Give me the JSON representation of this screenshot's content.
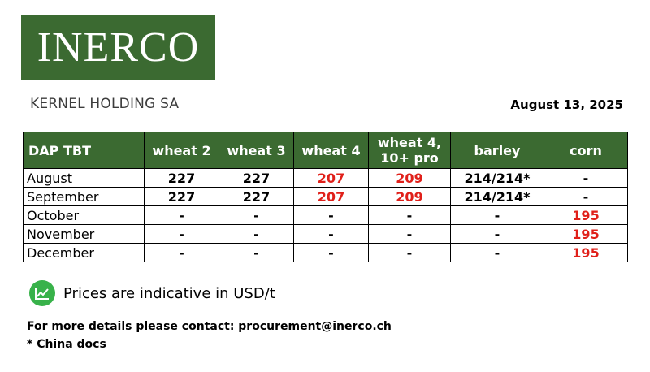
{
  "logo_text": "INERCO",
  "company": "KERNEL HOLDING SA",
  "date": "August 13, 2025",
  "table": {
    "headers": [
      "DAP TBT",
      "wheat 2",
      "wheat 3",
      "wheat 4",
      "wheat 4,\n10+ pro",
      "barley",
      "corn"
    ],
    "rows": [
      {
        "label": "August",
        "cells": [
          "227",
          "227",
          "207",
          "209",
          "214/214*",
          "-"
        ]
      },
      {
        "label": "September",
        "cells": [
          "227",
          "227",
          "207",
          "209",
          "214/214*",
          "-"
        ]
      },
      {
        "label": "October",
        "cells": [
          "-",
          "-",
          "-",
          "-",
          "-",
          "195"
        ]
      },
      {
        "label": "November",
        "cells": [
          "-",
          "-",
          "-",
          "-",
          "-",
          "195"
        ]
      },
      {
        "label": "December",
        "cells": [
          "-",
          "-",
          "-",
          "-",
          "-",
          "195"
        ]
      }
    ]
  },
  "note": "Prices are indicative in USD/t",
  "contact": "For more details please contact: procurement@inerco.ch",
  "footnote": "* China docs",
  "colors": {
    "brand_green": "#3b6a31",
    "price_red": "#e0201a",
    "icon_green": "#38b24a"
  },
  "icons": {
    "note": "chart-up-icon"
  }
}
